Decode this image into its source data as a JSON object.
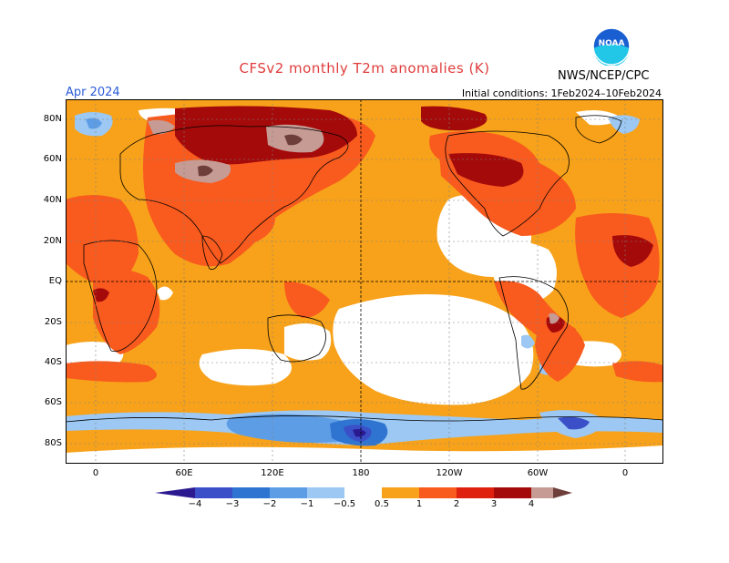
{
  "title": "CFSv2 monthly T2m anomalies (K)",
  "agency": "NWS/NCEP/CPC",
  "logo_text": "NOAA",
  "month": "Apr 2024",
  "initial_conditions": "Initial conditions: 1Feb2024–10Feb2024",
  "lat_labels": [
    "80N",
    "60N",
    "40N",
    "20N",
    "EQ",
    "20S",
    "40S",
    "60S",
    "80S"
  ],
  "lon_labels": [
    "0",
    "60E",
    "120E",
    "180",
    "120W",
    "60W",
    "0"
  ],
  "colorbar": {
    "labels": [
      "−4",
      "−3",
      "−2",
      "−1",
      "−0.5",
      "0.5",
      "1",
      "2",
      "3",
      "4"
    ],
    "colors": [
      "#2b1a8f",
      "#3a4fc8",
      "#2f74d0",
      "#5d9de6",
      "#9cc8f3",
      "#ffffff",
      "#f7a21a",
      "#f95a1e",
      "#e0200e",
      "#a40a0a",
      "#c69b94",
      "#6e3e3a"
    ]
  },
  "colors": {
    "orange": "#f7a21a",
    "red_orange": "#f95a1e",
    "red": "#e0200e",
    "dark_red": "#a40a0a",
    "pink_brown": "#c69b94",
    "brown": "#6e3e3a",
    "light_blue": "#9cc8f3",
    "blue": "#5d9de6",
    "mid_blue": "#2f74d0",
    "deep_blue": "#3a4fc8",
    "navy": "#2b1a8f"
  }
}
